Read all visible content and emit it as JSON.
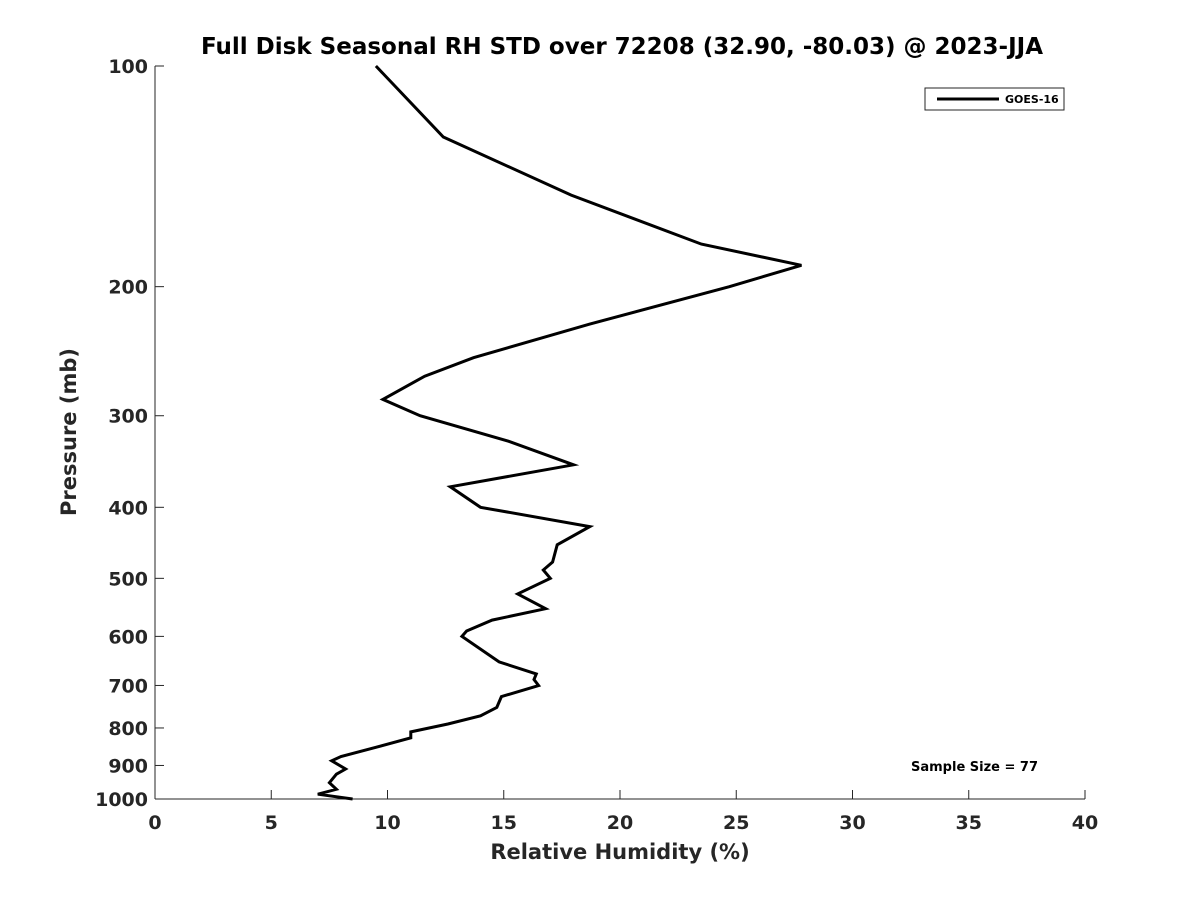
{
  "chart_data": {
    "type": "line",
    "title": "Full Disk Seasonal RH STD over 72208 (32.90, -80.03) @ 2023-JJA",
    "xlabel": "Relative Humidity (%)",
    "ylabel": "Pressure (mb)",
    "xlim": [
      0,
      40
    ],
    "ylim": [
      100,
      1000
    ],
    "y_scale": "log",
    "y_reversed": true,
    "x_ticks": [
      "0",
      "5",
      "10",
      "15",
      "20",
      "25",
      "30",
      "35",
      "40"
    ],
    "y_ticks": [
      "100",
      "200",
      "300",
      "400",
      "500",
      "600",
      "700",
      "800",
      "900",
      "1000"
    ],
    "grid": false,
    "legend_position": "top-right",
    "series": [
      {
        "name": "GOES-16",
        "color": "#000000",
        "points": [
          [
            9.5,
            100
          ],
          [
            12.4,
            125
          ],
          [
            17.9,
            150
          ],
          [
            23.5,
            175
          ],
          [
            27.8,
            187
          ],
          [
            24.7,
            200
          ],
          [
            18.7,
            225
          ],
          [
            13.7,
            250
          ],
          [
            11.6,
            265
          ],
          [
            9.8,
            285
          ],
          [
            11.4,
            300
          ],
          [
            15.2,
            325
          ],
          [
            18.0,
            350
          ],
          [
            12.7,
            375
          ],
          [
            14.0,
            400
          ],
          [
            18.7,
            425
          ],
          [
            17.3,
            450
          ],
          [
            17.1,
            475
          ],
          [
            16.7,
            487
          ],
          [
            17.0,
            500
          ],
          [
            15.6,
            525
          ],
          [
            16.8,
            550
          ],
          [
            14.5,
            570
          ],
          [
            13.4,
            590
          ],
          [
            13.2,
            600
          ],
          [
            14.8,
            650
          ],
          [
            16.4,
            675
          ],
          [
            16.3,
            687
          ],
          [
            16.5,
            700
          ],
          [
            14.9,
            725
          ],
          [
            14.7,
            750
          ],
          [
            14.0,
            770
          ],
          [
            12.6,
            790
          ],
          [
            11.0,
            810
          ],
          [
            11.0,
            825
          ],
          [
            9.5,
            850
          ],
          [
            8.0,
            875
          ],
          [
            7.6,
            887
          ],
          [
            8.2,
            910
          ],
          [
            7.8,
            925
          ],
          [
            7.5,
            950
          ],
          [
            7.8,
            970
          ],
          [
            7.0,
            985
          ],
          [
            8.5,
            1000
          ]
        ]
      }
    ],
    "annotation": "Sample Size = 77"
  }
}
